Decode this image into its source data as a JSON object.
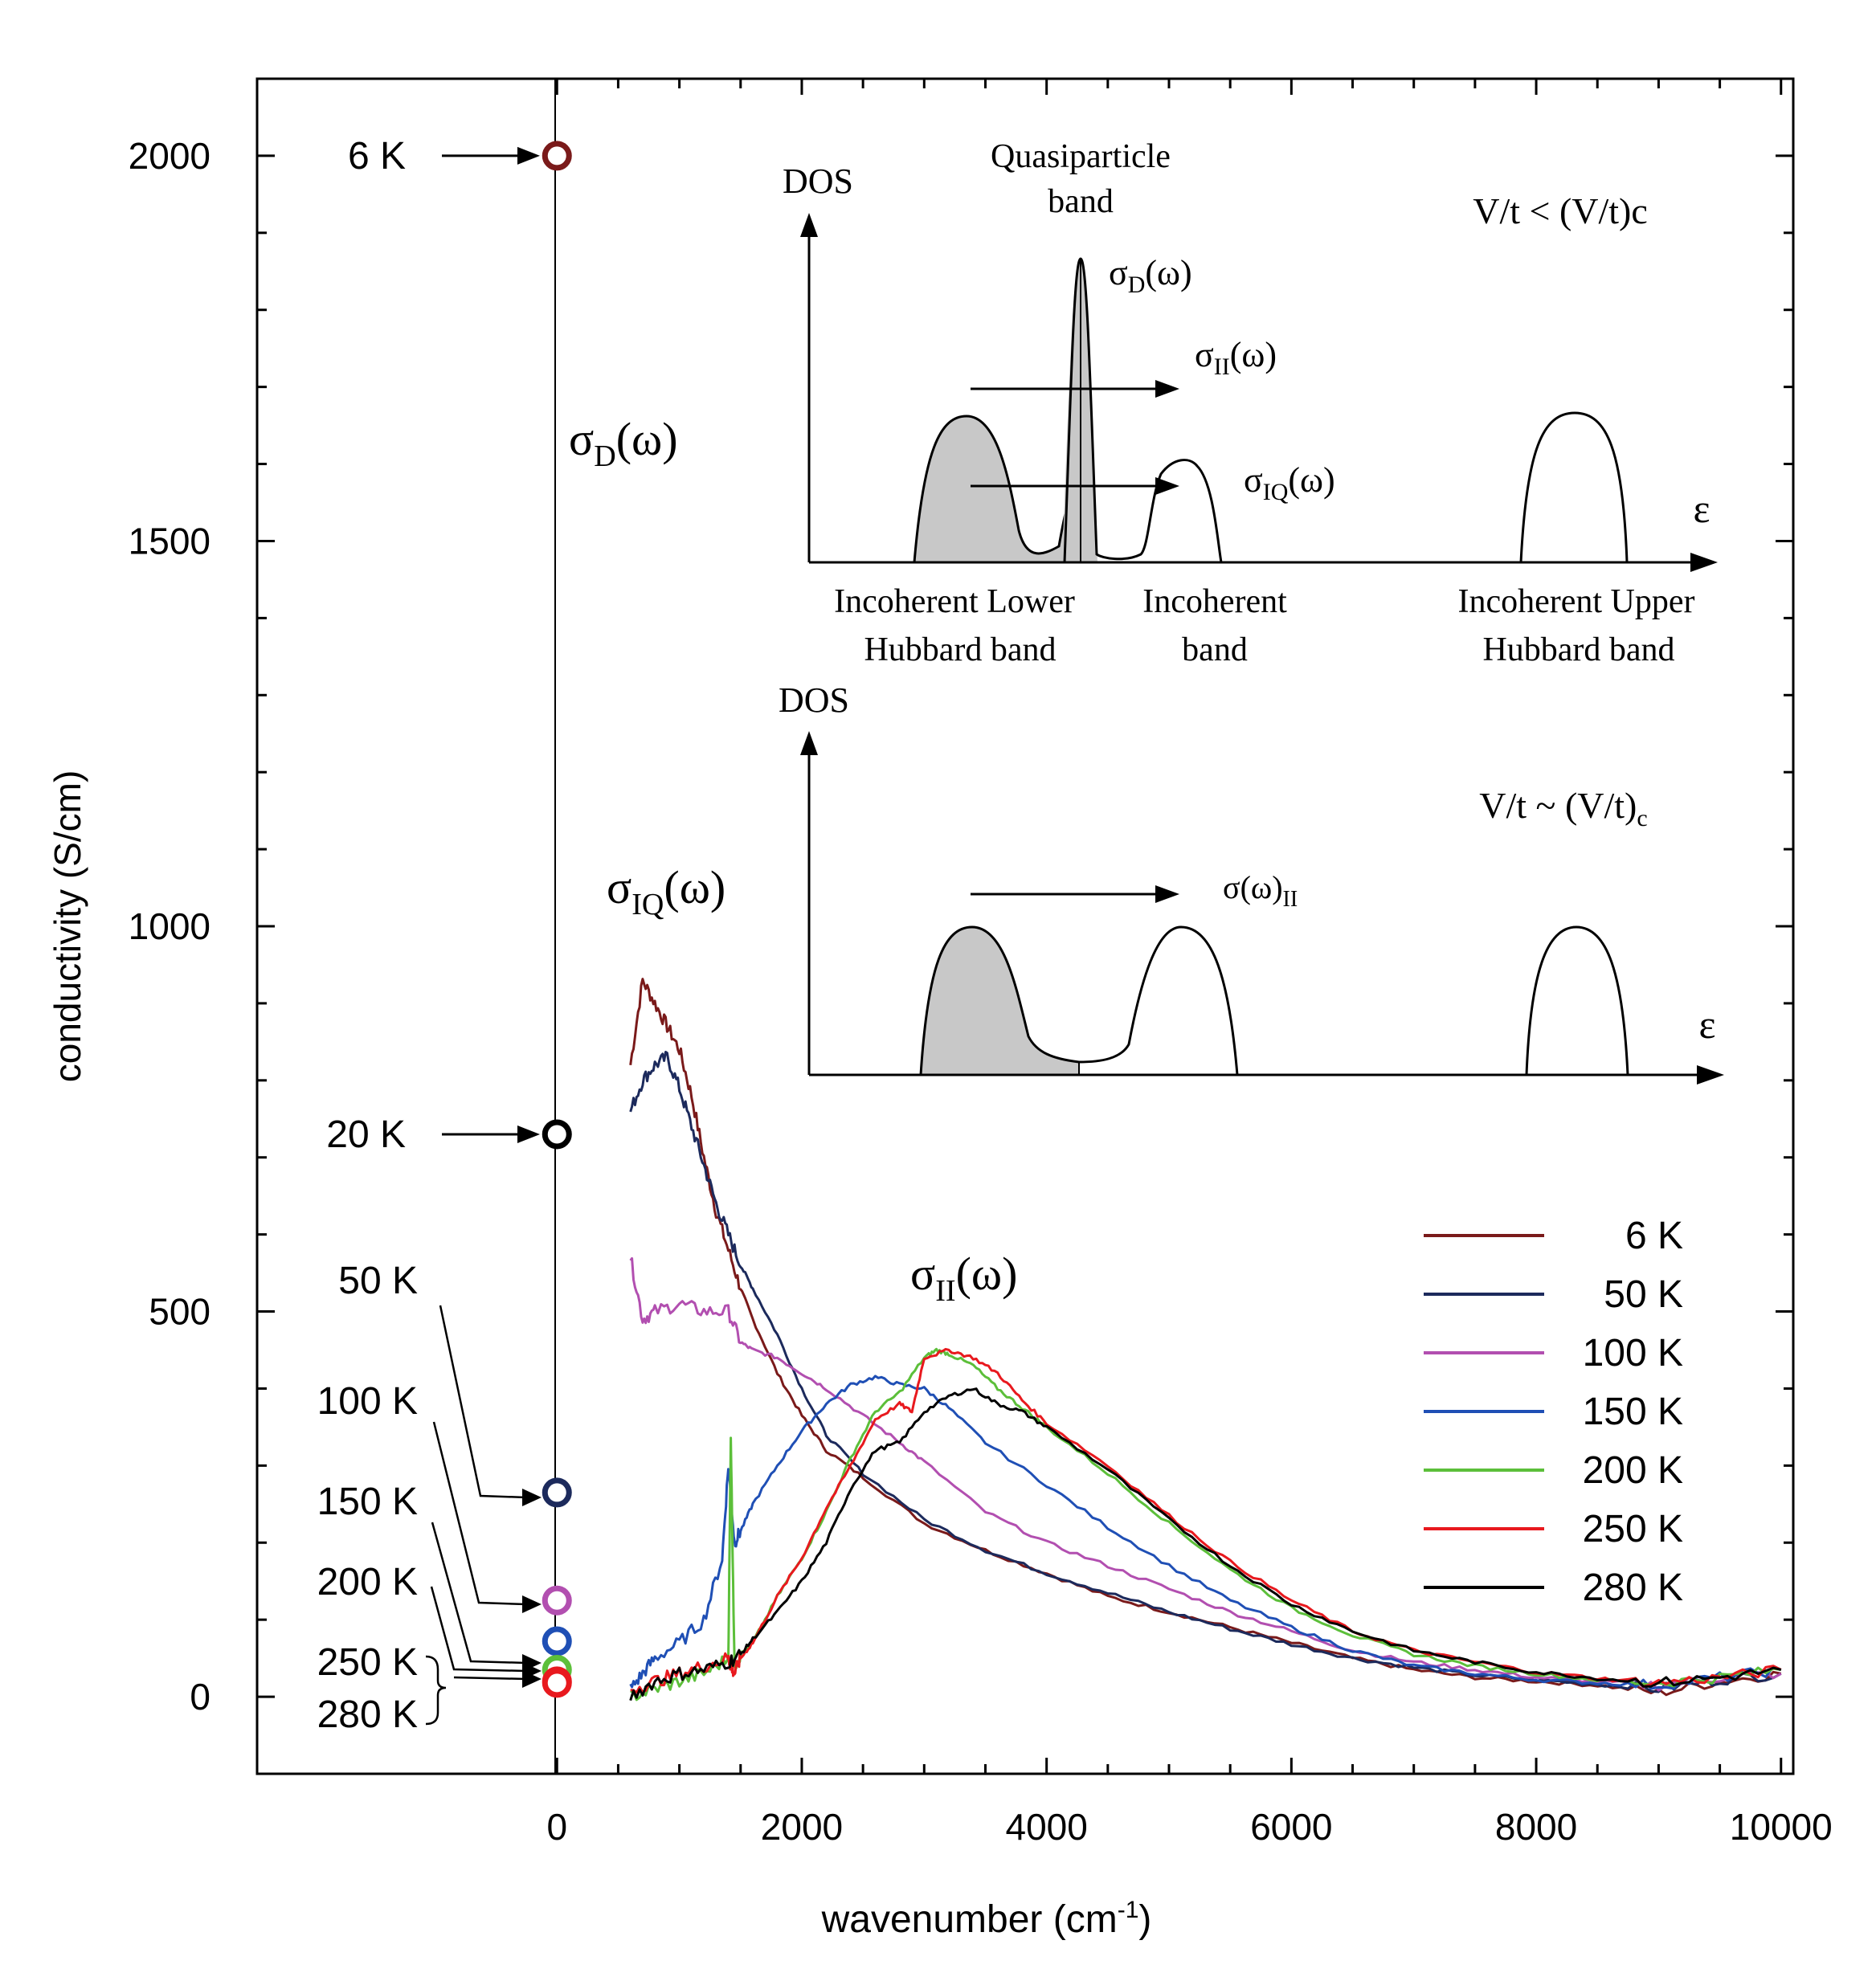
{
  "chart_data": {
    "type": "line",
    "xlabel": "wavenumber (cm",
    "xlabel_sup": "-1",
    "xlabel_end": ")",
    "ylabel": "conductivity (S/cm)",
    "xlim": [
      -2450,
      10100
    ],
    "ylim": [
      -100,
      2100
    ],
    "x_ticks": [
      "0",
      "2000",
      "4000",
      "6000",
      "8000",
      "10000"
    ],
    "x_tick_values": [
      0,
      2000,
      4000,
      6000,
      8000,
      10000
    ],
    "y_ticks": [
      "0",
      "500",
      "1000",
      "1500",
      "2000"
    ],
    "y_tick_values": [
      0,
      500,
      1000,
      1500,
      2000
    ],
    "legend": [
      "6 K",
      "50 K",
      "100 K",
      "150 K",
      "200 K",
      "250 K",
      "280 K"
    ],
    "colors": {
      "6 K": "#7a1a1a",
      "50 K": "#1c2a5c",
      "100 K": "#b24fb0",
      "150 K": "#1f4fb5",
      "200 K": "#5cbf3a",
      "250 K": "#e8191e",
      "280 K": "#000000",
      "20 K": "#000000"
    },
    "series": [
      {
        "name": "6 K",
        "x": [
          600,
          700,
          800,
          900,
          1000,
          1100,
          1200,
          1300,
          1400,
          1500,
          1600,
          1800,
          2000,
          2200,
          2500,
          3000,
          3500,
          4000,
          4500,
          5000,
          5500,
          6000,
          6500,
          7000,
          7500,
          8000,
          8500,
          9000,
          9500,
          10000
        ],
        "y": [
          820,
          930,
          900,
          870,
          840,
          780,
          700,
          630,
          580,
          530,
          490,
          420,
          365,
          320,
          285,
          225,
          190,
          160,
          130,
          110,
          90,
          70,
          50,
          35,
          25,
          20,
          15,
          5,
          20,
          30
        ]
      },
      {
        "name": "50 K",
        "x": [
          600,
          700,
          800,
          900,
          1000,
          1100,
          1200,
          1300,
          1400,
          1500,
          1600,
          1800,
          2000,
          2200,
          2500,
          3000,
          3500,
          4000,
          4500,
          5000,
          5500,
          6000,
          6500,
          7000,
          7500,
          8000,
          8500,
          9000,
          9500,
          10000
        ],
        "y": [
          760,
          800,
          820,
          830,
          790,
          740,
          690,
          640,
          600,
          560,
          530,
          470,
          400,
          340,
          290,
          230,
          190,
          160,
          135,
          110,
          88,
          68,
          50,
          38,
          28,
          22,
          16,
          10,
          22,
          30
        ]
      },
      {
        "name": "100 K",
        "x": [
          600,
          700,
          800,
          1000,
          1200,
          1400,
          1500,
          1600,
          1800,
          2000,
          2200,
          2500,
          2800,
          3000,
          3500,
          4000,
          4500,
          5000,
          5500,
          6000,
          6500,
          7000,
          7500,
          8000,
          8500,
          9000,
          9500,
          10000
        ],
        "y": [
          570,
          490,
          500,
          510,
          500,
          500,
          460,
          450,
          440,
          420,
          400,
          365,
          330,
          305,
          240,
          200,
          170,
          140,
          110,
          85,
          60,
          45,
          35,
          25,
          20,
          15,
          25,
          30
        ]
      },
      {
        "name": "150 K",
        "x": [
          600,
          700,
          800,
          1000,
          1200,
          1350,
          1400,
          1450,
          1500,
          1600,
          1800,
          2000,
          2200,
          2400,
          2600,
          2800,
          3000,
          3200,
          3500,
          4000,
          4500,
          5000,
          5500,
          6000,
          6500,
          7000,
          7500,
          8000,
          8500,
          9000,
          9500,
          10000
        ],
        "y": [
          10,
          30,
          50,
          70,
          100,
          180,
          300,
          200,
          215,
          250,
          300,
          345,
          380,
          405,
          415,
          405,
          400,
          375,
          330,
          275,
          220,
          170,
          125,
          90,
          60,
          40,
          30,
          22,
          18,
          15,
          25,
          35
        ]
      },
      {
        "name": "200 K",
        "x": [
          600,
          800,
          1000,
          1200,
          1400,
          1420,
          1450,
          1500,
          1600,
          1800,
          2000,
          2200,
          2400,
          2600,
          2800,
          3000,
          3100,
          3200,
          3400,
          3600,
          3800,
          4000,
          4500,
          5000,
          5500,
          6000,
          6500,
          7000,
          7500,
          8000,
          8500,
          9000,
          9500,
          10000
        ],
        "y": [
          0,
          10,
          20,
          30,
          50,
          340,
          40,
          55,
          70,
          130,
          180,
          240,
          310,
          370,
          395,
          440,
          450,
          445,
          430,
          400,
          375,
          350,
          290,
          225,
          165,
          115,
          80,
          55,
          40,
          30,
          22,
          18,
          25,
          35
        ]
      },
      {
        "name": "250 K",
        "x": [
          600,
          800,
          1000,
          1200,
          1400,
          1420,
          1450,
          1500,
          1600,
          1800,
          2000,
          2200,
          2400,
          2600,
          2800,
          2900,
          3000,
          3200,
          3400,
          3600,
          3800,
          4000,
          4500,
          5000,
          5500,
          6000,
          6500,
          7000,
          7500,
          8000,
          8500,
          9000,
          9500,
          10000
        ],
        "y": [
          10,
          20,
          30,
          40,
          50,
          40,
          30,
          50,
          70,
          130,
          180,
          245,
          300,
          360,
          380,
          370,
          440,
          450,
          440,
          420,
          385,
          355,
          300,
          235,
          175,
          125,
          85,
          60,
          45,
          32,
          24,
          18,
          25,
          35
        ]
      },
      {
        "name": "280 K",
        "x": [
          600,
          800,
          1000,
          1200,
          1400,
          1500,
          1600,
          1800,
          2000,
          2200,
          2400,
          2600,
          2800,
          3000,
          3200,
          3400,
          3600,
          3800,
          4000,
          4500,
          5000,
          5500,
          6000,
          6500,
          7000,
          7500,
          8000,
          8500,
          9000,
          9500,
          10000
        ],
        "y": [
          0,
          20,
          30,
          35,
          45,
          55,
          75,
          110,
          150,
          200,
          270,
          320,
          330,
          370,
          390,
          400,
          380,
          370,
          350,
          295,
          230,
          170,
          120,
          85,
          60,
          45,
          32,
          24,
          18,
          25,
          35
        ]
      }
    ],
    "drude_points": [
      {
        "label": "6 K",
        "value": 2000,
        "color": "#7a1a1a"
      },
      {
        "label": "20 K",
        "value": 730,
        "color": "#000000"
      },
      {
        "label": "50 K",
        "value": 265,
        "color": "#1c2a5c"
      },
      {
        "label": "100 K",
        "value": 125,
        "color": "#b24fb0"
      },
      {
        "label": "150 K",
        "value": 72,
        "color": "#1f4fb5"
      },
      {
        "label": "200 K",
        "value": 35,
        "color": "#5cbf3a"
      },
      {
        "label": "250 K",
        "value": 20,
        "color": "#e8191e"
      },
      {
        "label": "280 K",
        "value": 18,
        "color": "#e8191e"
      }
    ],
    "annotations": {
      "sigma": "σ",
      "sub_D": "D",
      "sub_IQ": "IQ",
      "sub_II": "II",
      "omega": "(ω)"
    }
  },
  "inset": {
    "dos": "DOS",
    "epsilon": "ε",
    "top_condition": "V/t < (V/t)c",
    "bottom_condition_main": "V/t ~ (V/t)",
    "bottom_condition_sub": "c",
    "quasiparticle_line1": "Quasiparticle",
    "quasiparticle_line2": "band",
    "lower_line1": "Incoherent Lower",
    "lower_line2": "Hubbard band",
    "incoherent_line1": "Incoherent",
    "incoherent_line2": "band",
    "upper_line1": "Incoherent Upper",
    "upper_line2": "Hubbard band",
    "bottom_sigma": "σ(ω)",
    "bottom_sigma_sub": "II"
  }
}
